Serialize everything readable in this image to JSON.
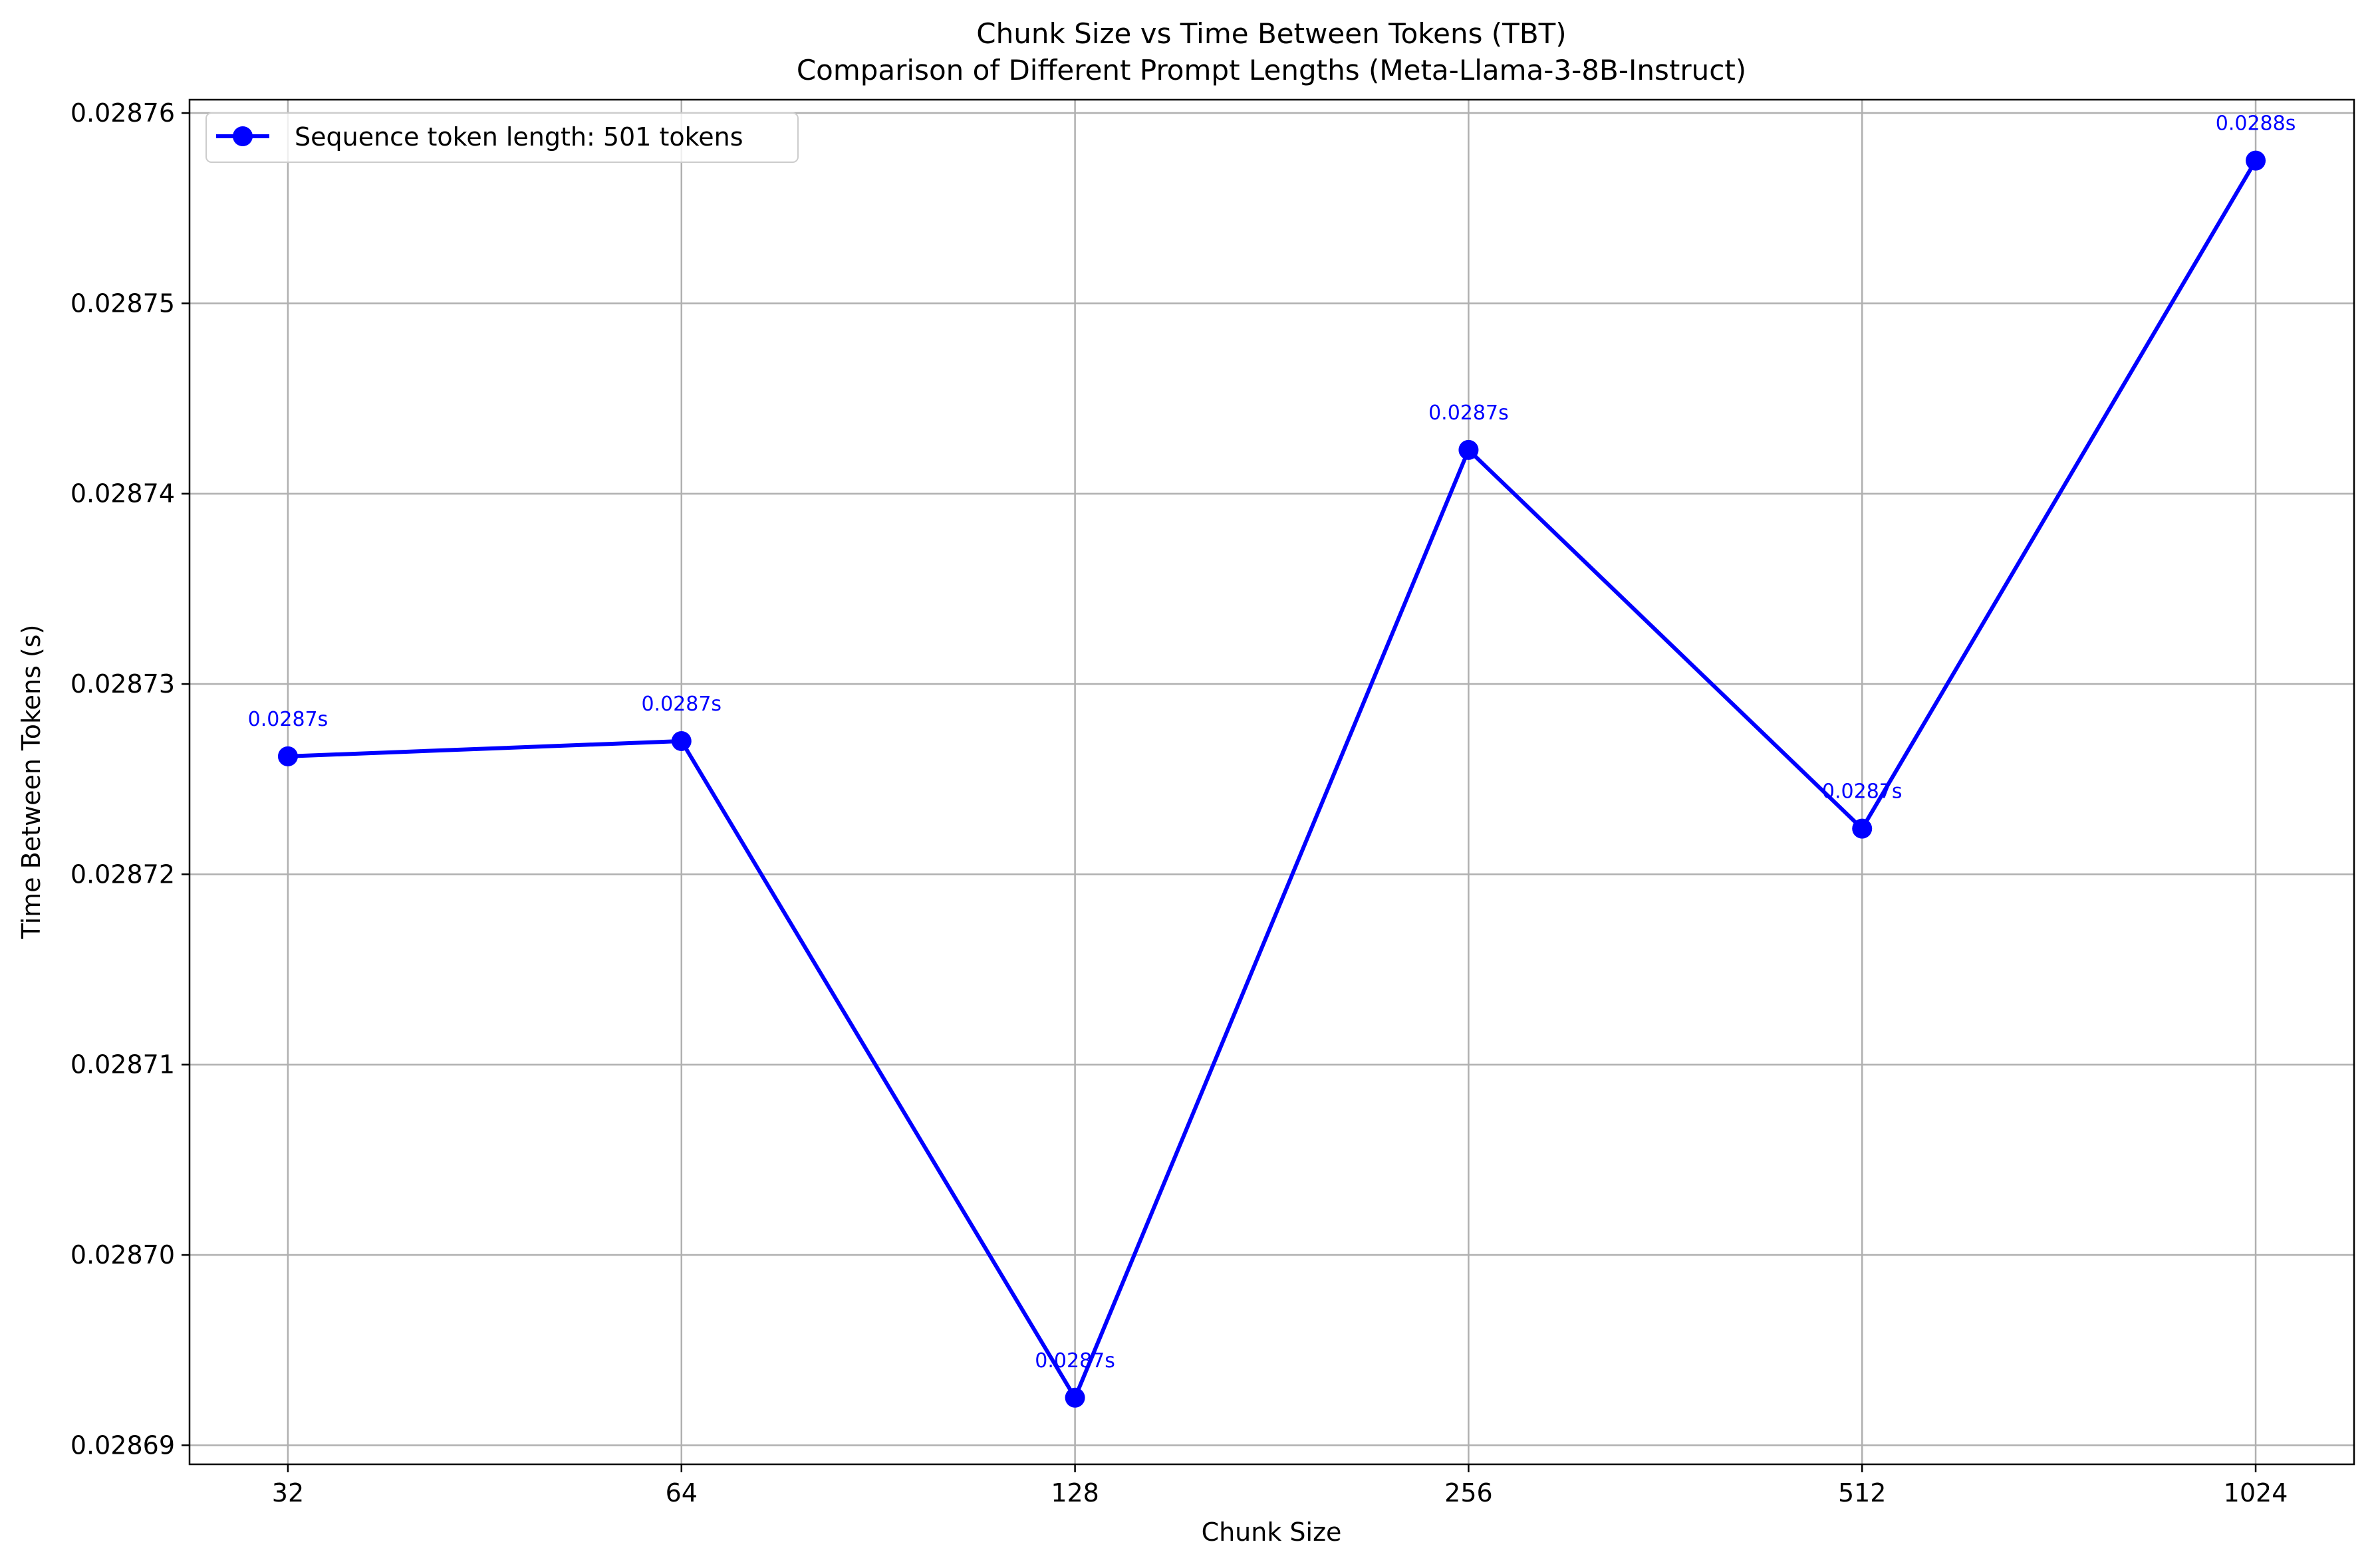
{
  "chart_data": {
    "type": "line",
    "title": "Chunk Size vs Time Between Tokens (TBT)",
    "subtitle": "Comparison of Different Prompt Lengths (Meta-Llama-3-8B-Instruct)",
    "xlabel": "Chunk Size",
    "ylabel": "Time Between Tokens (s)",
    "x_scale": "log2",
    "categories": [
      "32",
      "64",
      "128",
      "256",
      "512",
      "1024"
    ],
    "x": [
      32,
      64,
      128,
      256,
      512,
      1024
    ],
    "ylim": [
      0.028689,
      0.0287607
    ],
    "yticks": [
      0.02869,
      0.0287,
      0.02871,
      0.02872,
      0.02873,
      0.02874,
      0.02875,
      0.02876
    ],
    "ytick_labels": [
      "0.02869",
      "0.02870",
      "0.02871",
      "0.02872",
      "0.02873",
      "0.02874",
      "0.02875",
      "0.02876"
    ],
    "grid": true,
    "legend_position": "top-left",
    "series": [
      {
        "name": "Sequence token length: 501 tokens",
        "color": "#0000ff",
        "marker": "circle",
        "values": [
          0.0287262,
          0.028727,
          0.0286925,
          0.0287423,
          0.0287224,
          0.0287575
        ],
        "data_labels": [
          "0.0287s",
          "0.0287s",
          "0.0287s",
          "0.0287s",
          "0.0287s",
          "0.0288s"
        ]
      }
    ]
  }
}
